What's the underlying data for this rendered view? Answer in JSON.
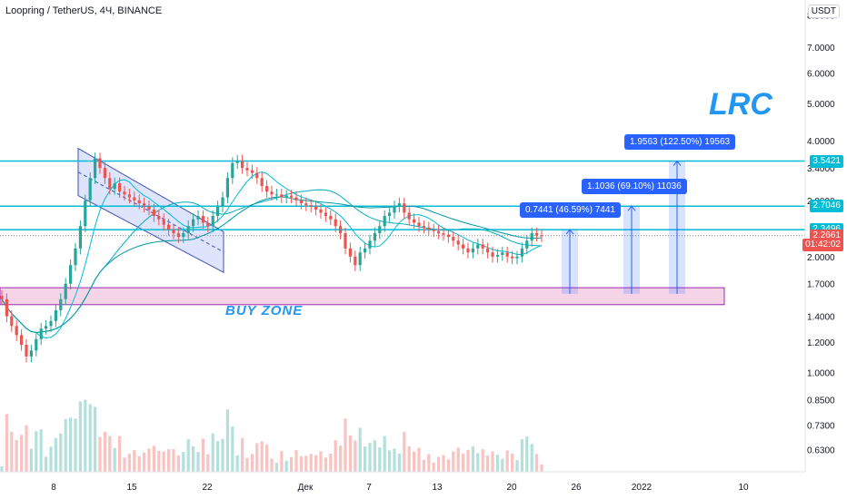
{
  "header": {
    "title": "Loopring / TetherUS, 4Ч, BINANCE",
    "currency": "USDT",
    "ticker_label": "LRC",
    "zone_label": "BUY ZONE"
  },
  "chart_data": {
    "type": "candlestick",
    "ylim": [
      0.57,
      8.7
    ],
    "log_scale": true,
    "grid": false,
    "y_ticks": [
      8.5,
      7.0,
      6.0,
      5.0,
      4.0,
      3.4,
      2.8,
      2.0,
      1.7,
      1.4,
      1.2,
      1.0,
      0.85,
      0.73,
      0.63
    ],
    "y_tick_labels": [
      "8.5000",
      "7.0000",
      "6.0000",
      "5.0000",
      "4.0000",
      "3.4000",
      "2.8000",
      "2.0000",
      "1.7000",
      "1.4000",
      "1.2000",
      "1.0000",
      "0.8500",
      "0.7300",
      "0.6300"
    ],
    "x_ticks": [
      "8",
      "15",
      "22",
      "Дек",
      "7",
      "13",
      "20",
      "26",
      "2022",
      "10"
    ],
    "price_tags": [
      {
        "label": "3.5421",
        "value": 3.5421,
        "color": "#00bcd4"
      },
      {
        "label": "2.7046",
        "value": 2.7046,
        "color": "#00bcd4"
      },
      {
        "label": "2.3496",
        "value": 2.3496,
        "color": "#00bcd4"
      },
      {
        "label": "2.2661",
        "value": 2.2661,
        "color": "#ef5350"
      },
      {
        "label": "01:42:02",
        "value": 2.14,
        "color": "#ef5350"
      }
    ],
    "horizontal_levels": [
      3.5421,
      2.7046,
      2.3496
    ],
    "buy_zone": [
      1.5,
      1.66
    ],
    "measures": [
      {
        "label": "0.7441 (46.59%) 7441",
        "from": 1.6,
        "to": 2.3496
      },
      {
        "label": "1.1036 (69.10%) 11036",
        "from": 1.6,
        "to": 2.7046
      },
      {
        "label": "1.9563 (122.50%) 19563",
        "from": 1.6,
        "to": 3.5421
      }
    ],
    "channel": {
      "upper_start": 3.82,
      "upper_end": 2.32,
      "lower_start": 2.88,
      "lower_end": 1.82
    },
    "candles_close": [
      1.55,
      1.4,
      1.32,
      1.25,
      1.18,
      1.1,
      1.14,
      1.22,
      1.3,
      1.32,
      1.36,
      1.45,
      1.55,
      1.7,
      1.9,
      2.1,
      2.4,
      2.8,
      3.2,
      3.6,
      3.4,
      3.2,
      3.0,
      3.1,
      2.95,
      2.9,
      2.85,
      2.8,
      2.75,
      2.7,
      2.65,
      2.55,
      2.5,
      2.42,
      2.35,
      2.3,
      2.25,
      2.3,
      2.4,
      2.5,
      2.55,
      2.45,
      2.4,
      2.55,
      2.7,
      2.85,
      3.2,
      3.5,
      3.55,
      3.4,
      3.35,
      3.3,
      3.2,
      3.05,
      2.95,
      2.9,
      2.9,
      2.85,
      2.88,
      2.85,
      2.8,
      2.75,
      2.72,
      2.7,
      2.65,
      2.6,
      2.55,
      2.5,
      2.4,
      2.3,
      2.1,
      2.0,
      1.9,
      2.05,
      2.1,
      2.2,
      2.3,
      2.4,
      2.55,
      2.6,
      2.7,
      2.75,
      2.6,
      2.5,
      2.45,
      2.4,
      2.38,
      2.35,
      2.33,
      2.3,
      2.28,
      2.25,
      2.2,
      2.15,
      2.1,
      2.05,
      2.1,
      2.15,
      2.1,
      2.05,
      2.0,
      2.02,
      2.05,
      2.0,
      1.98,
      2.0,
      2.1,
      2.2,
      2.3,
      2.27,
      2.26
    ]
  }
}
